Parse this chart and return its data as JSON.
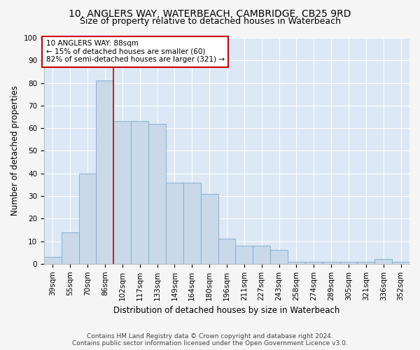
{
  "title_line1": "10, ANGLERS WAY, WATERBEACH, CAMBRIDGE, CB25 9RD",
  "title_line2": "Size of property relative to detached houses in Waterbeach",
  "xlabel": "Distribution of detached houses by size in Waterbeach",
  "ylabel": "Number of detached properties",
  "categories": [
    "39sqm",
    "55sqm",
    "70sqm",
    "86sqm",
    "102sqm",
    "117sqm",
    "133sqm",
    "149sqm",
    "164sqm",
    "180sqm",
    "196sqm",
    "211sqm",
    "227sqm",
    "243sqm",
    "258sqm",
    "274sqm",
    "289sqm",
    "305sqm",
    "321sqm",
    "336sqm",
    "352sqm"
  ],
  "values": [
    3,
    14,
    40,
    81,
    63,
    63,
    62,
    36,
    36,
    31,
    11,
    8,
    8,
    6,
    1,
    1,
    1,
    1,
    1,
    2,
    1
  ],
  "bar_color": "#c9d9ea",
  "bar_edge_color": "#7aaacb",
  "red_line_x": 3.5,
  "annotation_line1": "10 ANGLERS WAY: 88sqm",
  "annotation_line2": "← 15% of detached houses are smaller (60)",
  "annotation_line3": "82% of semi-detached houses are larger (321) →",
  "annotation_box_color": "#ffffff",
  "annotation_box_edge_color": "#cc0000",
  "ylim": [
    0,
    100
  ],
  "yticks": [
    0,
    10,
    20,
    30,
    40,
    50,
    60,
    70,
    80,
    90,
    100
  ],
  "plot_bg_color": "#dce8f5",
  "fig_bg_color": "#f5f5f5",
  "footer_line1": "Contains HM Land Registry data © Crown copyright and database right 2024.",
  "footer_line2": "Contains public sector information licensed under the Open Government Licence v3.0.",
  "title_fontsize": 10,
  "subtitle_fontsize": 9,
  "axis_label_fontsize": 8.5,
  "tick_fontsize": 7.5,
  "annotation_fontsize": 7.5,
  "footer_fontsize": 6.5
}
